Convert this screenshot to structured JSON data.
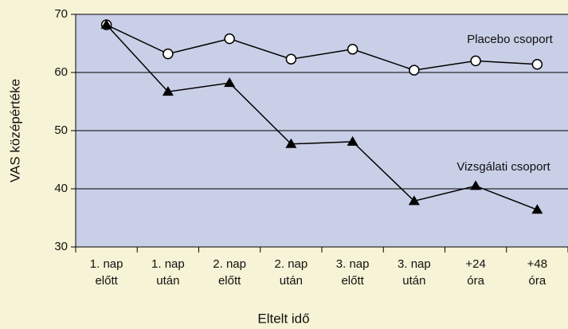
{
  "chart_data": {
    "type": "line",
    "xlabel": "Eltelt idő",
    "ylabel": "VAS középértéke",
    "categories": [
      [
        "1. nap",
        "előtt"
      ],
      [
        "1. nap",
        "után"
      ],
      [
        "2. nap",
        "előtt"
      ],
      [
        "2. nap",
        "után"
      ],
      [
        "3. nap",
        "előtt"
      ],
      [
        "3. nap",
        "után"
      ],
      [
        "+24",
        "óra"
      ],
      [
        "+48",
        "óra"
      ]
    ],
    "series": [
      {
        "name": "Placebo csoport",
        "color": "#000000",
        "marker": "circle",
        "values": [
          68.2,
          63.2,
          65.8,
          62.3,
          64.0,
          60.4,
          62.0,
          61.4
        ]
      },
      {
        "name": "Vizsgálati csoport",
        "color": "#000000",
        "marker": "triangle",
        "values": [
          68.2,
          56.7,
          58.2,
          47.7,
          48.1,
          37.9,
          40.5,
          36.4
        ]
      }
    ],
    "ylim": [
      30,
      70
    ],
    "yticks": [
      30,
      40,
      50,
      60,
      70
    ],
    "grid": true
  }
}
